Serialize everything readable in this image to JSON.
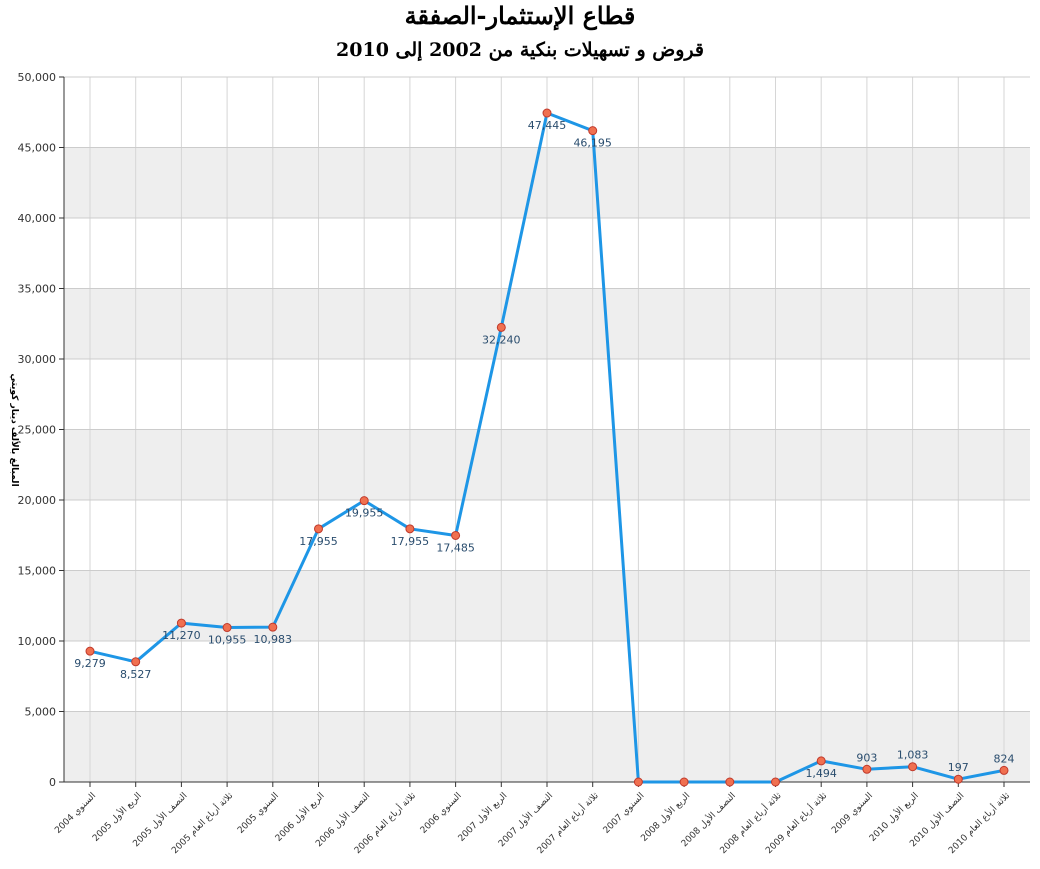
{
  "chart_data": {
    "type": "line",
    "title": "قطاع الإستثمار-الصفقة",
    "subtitle": "قروض و تسهيلات بنكية من 2002 إلى 2010",
    "ylabel": "المبالغ بالألف دينار كويتي",
    "xlabel": "",
    "ylim": [
      0,
      50000
    ],
    "yticks": [
      "0",
      "5,000",
      "10,000",
      "15,000",
      "20,000",
      "25,000",
      "30,000",
      "35,000",
      "40,000",
      "45,000",
      "50,000"
    ],
    "grid": true,
    "legend": "none",
    "line_color": "#1e96e6",
    "marker_color": "#f07050",
    "marker_edge": "#c0392b",
    "band_color": "#eeeeee",
    "categories": [
      "السنوي 2004",
      "الربع الأول 2005",
      "النصف الأول 2005",
      "ثلاثة أرباع العام 2005",
      "السنوي 2005",
      "الربع الأول 2006",
      "النصف الأول 2006",
      "ثلاثة أرباع العام 2006",
      "السنوي 2006",
      "الربع الأول 2007",
      "النصف الأول 2007",
      "ثلاثة أرباع العام 2007",
      "السنوي 2007",
      "الربع الأول 2008",
      "النصف الأول 2008",
      "ثلاثة أرباع العام 2008",
      "ثلاثة أرباع العام 2009",
      "السنوي 2009",
      "الربع الأول 2010",
      "النصف الأول 2010",
      "ثلاثة أرباع العام 2010"
    ],
    "values": [
      9279,
      8527,
      11270,
      10955,
      10983,
      17955,
      19955,
      17955,
      17485,
      32240,
      47445,
      46195,
      0,
      0,
      0,
      0,
      1494,
      903,
      1083,
      197,
      824
    ],
    "labels": [
      "9,279",
      "8,527",
      "11,270",
      "10,955",
      "10,983",
      "17,955",
      "19,955",
      "17,955",
      "17,485",
      "32,240",
      "47,445",
      "46,195",
      "",
      "",
      "",
      "",
      "1,494",
      "903",
      "1,083",
      "197",
      "824"
    ],
    "label_pos": [
      "below",
      "below",
      "below",
      "below",
      "below",
      "below",
      "below",
      "below",
      "below",
      "below",
      "below",
      "below",
      "below",
      "below",
      "below",
      "below",
      "below",
      "above",
      "above",
      "above",
      "above"
    ]
  }
}
